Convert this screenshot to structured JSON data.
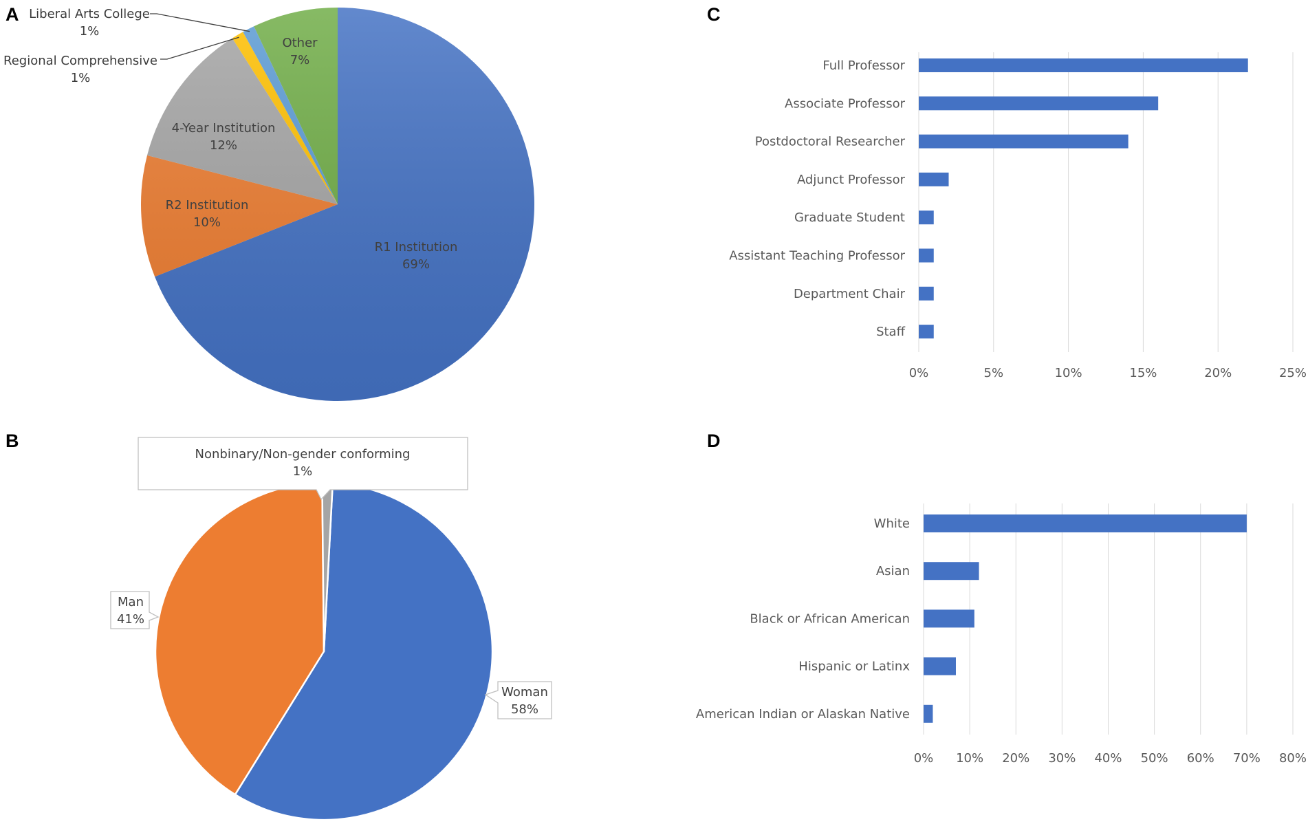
{
  "chart_data": [
    {
      "panel": "A",
      "type": "pie",
      "slices": [
        {
          "label": "R1 Institution",
          "value": 69,
          "pct_label": "69%",
          "color": "#4472c4",
          "text_color": "#ffffff"
        },
        {
          "label": "R2 Institution",
          "value": 10,
          "pct_label": "10%",
          "color": "#ed7d31",
          "text_color": "#404040"
        },
        {
          "label": "4-Year Institution",
          "value": 12,
          "pct_label": "12%",
          "color": "#a5a5a5",
          "text_color": "#404040"
        },
        {
          "label": "Regional Comprehensive",
          "value": 1,
          "pct_label": "1%",
          "color": "#ffc000",
          "text_color": "#404040"
        },
        {
          "label": "Liberal Arts College",
          "value": 1,
          "pct_label": "1%",
          "color": "#5b9bd5",
          "text_color": "#404040"
        },
        {
          "label": "Other",
          "value": 7,
          "pct_label": "7%",
          "color": "#70ad47",
          "text_color": "#404040"
        }
      ]
    },
    {
      "panel": "B",
      "type": "pie",
      "slices": [
        {
          "label": "Woman",
          "value": 58,
          "pct_label": "58%",
          "color": "#4472c4"
        },
        {
          "label": "Man",
          "value": 41,
          "pct_label": "41%",
          "color": "#ed7d31"
        },
        {
          "label": "Nonbinary/Non-gender conforming",
          "value": 1,
          "pct_label": "1%",
          "color": "#a5a5a5"
        }
      ]
    },
    {
      "panel": "C",
      "type": "bar",
      "orientation": "horizontal",
      "categories": [
        "Full Professor",
        "Associate Professor",
        "Postdoctoral Researcher",
        "Adjunct Professor",
        "Graduate Student",
        "Assistant Teaching Professor",
        "Department Chair",
        "Staff"
      ],
      "values": [
        22,
        16,
        14,
        2,
        1,
        1,
        1,
        1
      ],
      "xlim": [
        0,
        25
      ],
      "xticks": [
        "0%",
        "5%",
        "10%",
        "15%",
        "20%",
        "25%"
      ],
      "grid": true,
      "color": "#4472c4"
    },
    {
      "panel": "D",
      "type": "bar",
      "orientation": "horizontal",
      "categories": [
        "White",
        "Asian",
        "Black or African American",
        "Hispanic or Latinx",
        "American Indian or Alaskan Native"
      ],
      "values": [
        70,
        12,
        11,
        7,
        2
      ],
      "xlim": [
        0,
        80
      ],
      "xticks": [
        "0%",
        "10%",
        "20%",
        "30%",
        "40%",
        "50%",
        "60%",
        "70%",
        "80%"
      ],
      "grid": true,
      "color": "#4472c4"
    }
  ],
  "panels": {
    "a": "A",
    "b": "B",
    "c": "C",
    "d": "D"
  }
}
